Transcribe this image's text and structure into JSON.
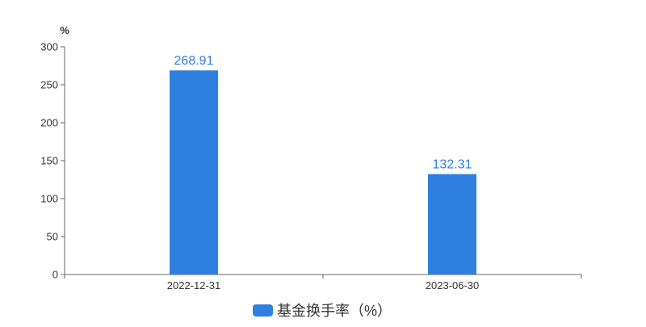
{
  "chart_data": {
    "type": "bar",
    "categories": [
      "2022-12-31",
      "2023-06-30"
    ],
    "series": [
      {
        "name": "基金换手率（%）",
        "values": [
          268.91,
          132.31
        ],
        "labels": [
          "268.91",
          "132.31"
        ],
        "color": "#2e7fe0"
      }
    ],
    "y_unit": "%",
    "ylim": [
      0,
      300
    ],
    "yticks": [
      0,
      50,
      100,
      150,
      200,
      250,
      300
    ],
    "grid": false,
    "legend_position": "bottom-center"
  },
  "colors": {
    "bar": "#2e7fe0",
    "label": "#2e7fe0",
    "axis": "#666666",
    "text": "#333333"
  }
}
